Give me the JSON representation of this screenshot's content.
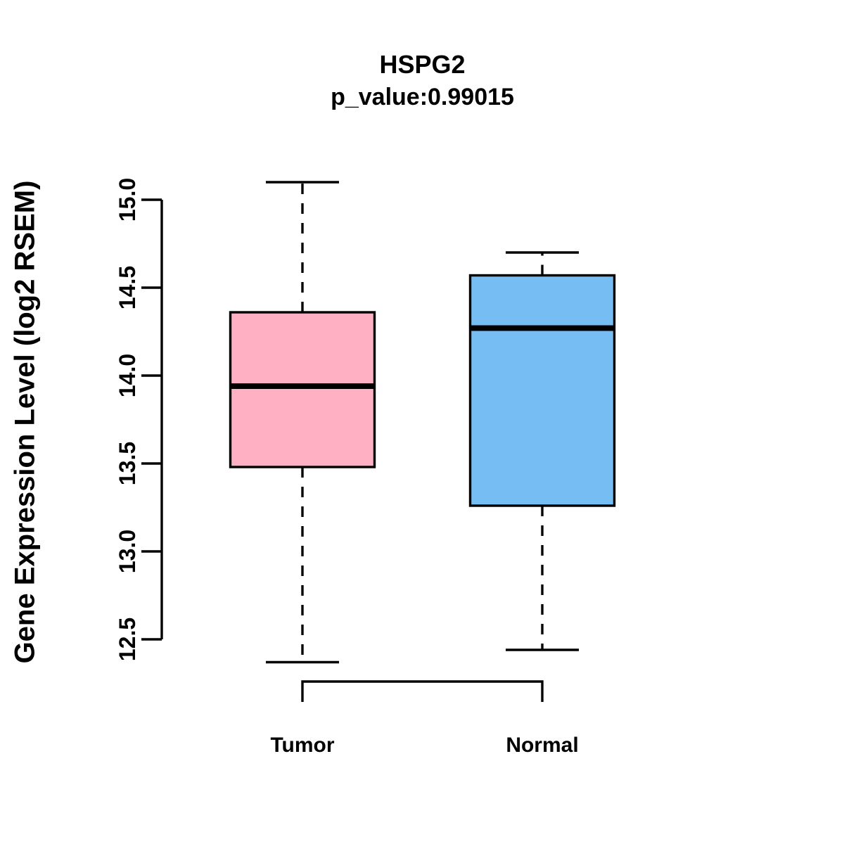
{
  "title": "HSPG2",
  "subtitle": "p_value:0.99015",
  "y_axis": {
    "label": "Gene Expression Level (log2 RSEM)"
  },
  "colors": {
    "tumor_fill": "#FFB1C3",
    "normal_fill": "#76BDF3",
    "line": "#000000",
    "background": "#FFFFFF"
  },
  "chart_data": {
    "type": "boxplot",
    "title": "HSPG2",
    "subtitle": "p_value:0.99015",
    "ylabel": "Gene Expression Level (log2 RSEM)",
    "categories": [
      "Tumor",
      "Normal"
    ],
    "ylim": [
      12.3,
      15.15
    ],
    "yticks": [
      15.0,
      14.5,
      14.0,
      13.5,
      13.0,
      12.5
    ],
    "ytick_labels": [
      "15.0",
      "14.5",
      "14.0",
      "13.5",
      "13.0",
      "12.5"
    ],
    "grid": false,
    "legend": "none",
    "orientation": "vertical",
    "series": [
      {
        "name": "Tumor",
        "fill_color": "#FFB1C3",
        "whisker_low": 12.37,
        "q1": 13.48,
        "median": 13.94,
        "q3": 14.36,
        "whisker_high": 15.1
      },
      {
        "name": "Normal",
        "fill_color": "#76BDF3",
        "whisker_low": 12.44,
        "q1": 13.26,
        "median": 14.27,
        "q3": 14.57,
        "whisker_high": 14.7
      }
    ]
  }
}
